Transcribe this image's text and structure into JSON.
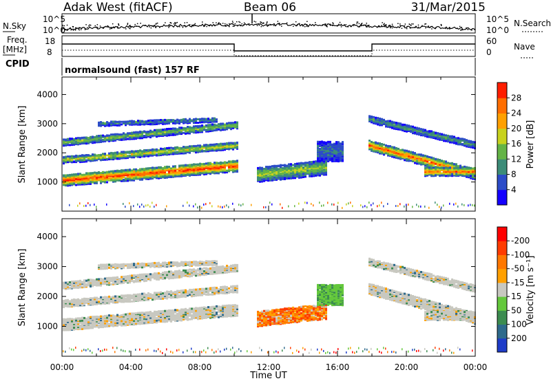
{
  "header": {
    "radar": "Adak West (fitACF)",
    "beam": "Beam 06",
    "date": "31/Mar/2015"
  },
  "noise_panel": {
    "left_label": "N.Sky",
    "right_label": "N.Search",
    "ticks_left": [
      "10^5",
      "10^0"
    ],
    "ticks_right": [
      "10^5",
      "10^0"
    ]
  },
  "freq_panel": {
    "left_label_1": "Freq.",
    "left_label_2": "[MHz]",
    "right_label": "Nave",
    "ticks_left": [
      "18",
      "8"
    ],
    "ticks_right": [
      "60",
      "0"
    ]
  },
  "cpid": {
    "label": "CPID",
    "text": "normalsound (fast) 157 RF"
  },
  "chart_data": [
    {
      "type": "heatmap",
      "name": "power",
      "ylabel": "Slant Range [km]",
      "yticks": [
        "1000",
        "2000",
        "3000",
        "4000"
      ],
      "ylim": [
        0,
        4600
      ],
      "colorbar": {
        "label": "Power [dB]",
        "ticks": [
          "4",
          "8",
          "12",
          "16",
          "20",
          "24",
          "28"
        ],
        "colors": [
          "#1400ff",
          "#2c4cc8",
          "#3c8c78",
          "#64b446",
          "#c8d21e",
          "#ffa000",
          "#ff6e00",
          "#ff1e00"
        ]
      }
    },
    {
      "type": "heatmap",
      "name": "velocity",
      "ylabel": "Slant Range [km]",
      "yticks": [
        "1000",
        "2000",
        "3000",
        "4000"
      ],
      "ylim": [
        0,
        4600
      ],
      "colorbar": {
        "label": "Velocity [m s⁻¹]",
        "ticks": [
          "200",
          "100",
          "50",
          "15",
          "-15",
          "-50",
          "-100",
          "-200"
        ],
        "colors": [
          "#1e3cc8",
          "#2e6a8c",
          "#3c8c50",
          "#64c83c",
          "#c8c8c0",
          "#ffa000",
          "#ff7800",
          "#ff3c00",
          "#ff0000"
        ]
      }
    }
  ],
  "time_axis": {
    "xlabel": "Time UT",
    "ticks": [
      "00:00",
      "04:00",
      "08:00",
      "12:00",
      "16:00",
      "20:00",
      "00:00"
    ]
  }
}
